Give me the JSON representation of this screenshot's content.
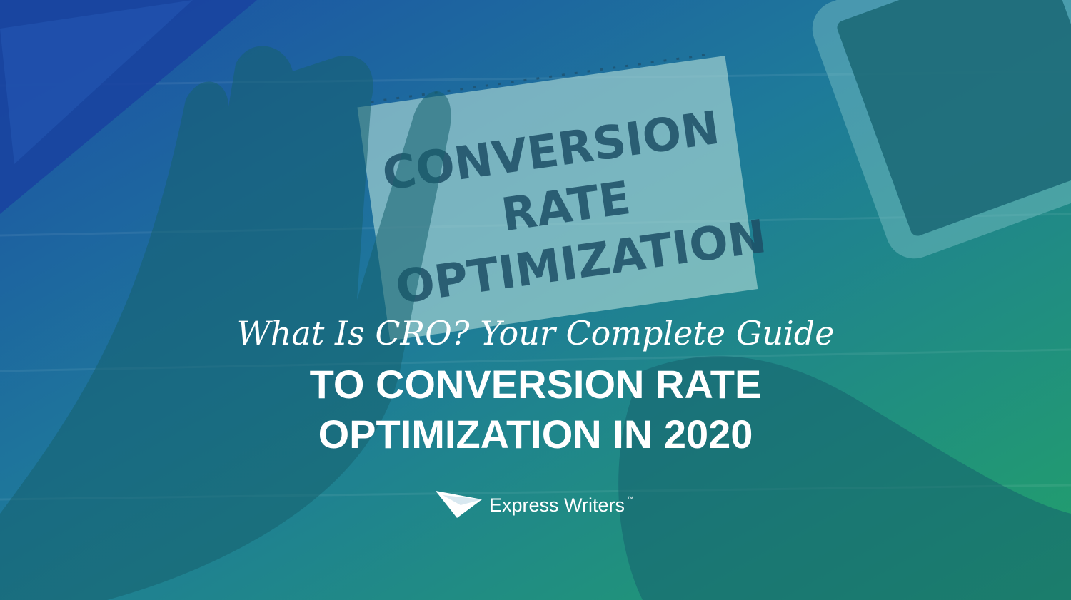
{
  "notebook": {
    "lines": [
      "CONVERSION",
      "RATE",
      "OPTIMIZATION"
    ]
  },
  "header": {
    "kicker": "What Is CRO? Your Complete Guide",
    "title_lines": [
      "TO CONVERSION RATE",
      "OPTIMIZATION IN 2020"
    ]
  },
  "brand": {
    "name": "Express Writers",
    "mark": "™"
  }
}
